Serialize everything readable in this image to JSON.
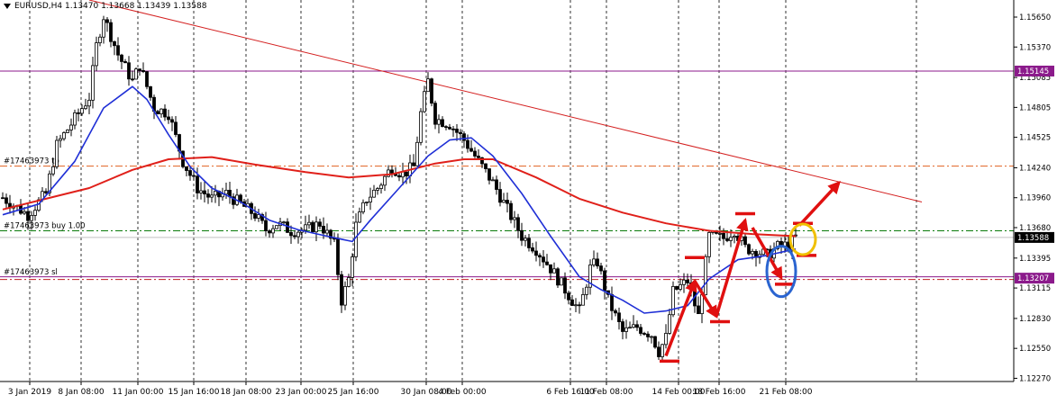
{
  "header": {
    "symbol": "EURUSD,H4",
    "ohlc": "1.13470 1.13668 1.13439 1.13588"
  },
  "colors": {
    "candle": "#000000",
    "ma_fast": "#1f2fd6",
    "ma_slow": "#e0201a",
    "trendline": "#d42020",
    "level_1_15145": "#8b1a8b",
    "tp_line": "#e06020",
    "buy_line": "#0a7a0a",
    "sl_line": "#c02020",
    "annotation_red": "#e01010",
    "annotation_blue": "#2a64d0",
    "annotation_yellow": "#f0c000",
    "price_tag_bg": "#8b1a8b",
    "current_tag_bg": "#000000"
  },
  "chart_data": {
    "type": "candlestick",
    "timeframe": "H4",
    "x_tick_labels": [
      "3 Jan 2019",
      "8 Jan 08:00",
      "11 Jan 00:00",
      "15 Jan 16:00",
      "18 Jan 08:00",
      "23 Jan 00:00",
      "25 Jan 16:00",
      "30 Jan 08:00",
      "4 Feb 00:00",
      "6 Feb 16:00",
      "11 Feb 08:00",
      "14 Feb 00:00",
      "18 Feb 16:00",
      "21 Feb 08:00"
    ],
    "y_tick_labels": [
      "1.15650",
      "1.15370",
      "1.15085",
      "1.14805",
      "1.14525",
      "1.14240",
      "1.13960",
      "1.13680",
      "1.13395",
      "1.13115",
      "1.12830",
      "1.12550",
      "1.12270"
    ],
    "ylim": [
      1.1224,
      1.1581
    ],
    "close_path": [
      [
        0,
        1.1396
      ],
      [
        7,
        1.138
      ],
      [
        12,
        1.14
      ],
      [
        15,
        1.1445
      ],
      [
        20,
        1.147
      ],
      [
        24,
        1.149
      ],
      [
        26,
        1.1538
      ],
      [
        28,
        1.1566
      ],
      [
        32,
        1.153
      ],
      [
        36,
        1.1505
      ],
      [
        38,
        1.152
      ],
      [
        42,
        1.148
      ],
      [
        46,
        1.1475
      ],
      [
        50,
        1.143
      ],
      [
        54,
        1.1405
      ],
      [
        58,
        1.1395
      ],
      [
        62,
        1.14
      ],
      [
        66,
        1.139
      ],
      [
        70,
        1.138
      ],
      [
        73,
        1.1366
      ],
      [
        76,
        1.1372
      ],
      [
        80,
        1.1365
      ],
      [
        84,
        1.1366
      ],
      [
        88,
        1.1372
      ],
      [
        92,
        1.1352
      ],
      [
        94,
        1.13
      ],
      [
        96,
        1.132
      ],
      [
        98,
        1.137
      ],
      [
        101,
        1.1395
      ],
      [
        104,
        1.1405
      ],
      [
        108,
        1.1425
      ],
      [
        111,
        1.1418
      ],
      [
        114,
        1.1425
      ],
      [
        116,
        1.1475
      ],
      [
        118,
        1.1505
      ],
      [
        120,
        1.147
      ],
      [
        124,
        1.1465
      ],
      [
        128,
        1.145
      ],
      [
        132,
        1.143
      ],
      [
        136,
        1.141
      ],
      [
        140,
        1.1385
      ],
      [
        144,
        1.136
      ],
      [
        148,
        1.1348
      ],
      [
        152,
        1.133
      ],
      [
        156,
        1.131
      ],
      [
        160,
        1.129
      ],
      [
        163,
        1.133
      ],
      [
        165,
        1.1336
      ],
      [
        168,
        1.13
      ],
      [
        172,
        1.127
      ],
      [
        176,
        1.1275
      ],
      [
        180,
        1.1268
      ],
      [
        182,
        1.1252
      ],
      [
        184,
        1.1265
      ],
      [
        186,
        1.1308
      ],
      [
        190,
        1.1318
      ],
      [
        193,
        1.1285
      ],
      [
        196,
        1.136
      ],
      [
        200,
        1.1358
      ],
      [
        203,
        1.1366
      ],
      [
        206,
        1.1349
      ],
      [
        209,
        1.1346
      ],
      [
        212,
        1.1342
      ],
      [
        215,
        1.135
      ],
      [
        218,
        1.1352
      ],
      [
        220,
        1.1359
      ]
    ],
    "series": [
      {
        "values": [
          [
            0,
            1.138
          ],
          [
            10,
            1.139
          ],
          [
            20,
            1.143
          ],
          [
            28,
            1.148
          ],
          [
            36,
            1.15
          ],
          [
            40,
            1.1488
          ],
          [
            46,
            1.1455
          ],
          [
            52,
            1.1425
          ],
          [
            58,
            1.1405
          ],
          [
            66,
            1.1392
          ],
          [
            74,
            1.1375
          ],
          [
            82,
            1.1366
          ],
          [
            90,
            1.136
          ],
          [
            97,
            1.1355
          ],
          [
            102,
            1.1375
          ],
          [
            110,
            1.1405
          ],
          [
            118,
            1.1435
          ],
          [
            124,
            1.145
          ],
          [
            130,
            1.1452
          ],
          [
            136,
            1.1435
          ],
          [
            144,
            1.14
          ],
          [
            152,
            1.136
          ],
          [
            160,
            1.1322
          ],
          [
            166,
            1.131
          ],
          [
            172,
            1.13
          ],
          [
            178,
            1.1288
          ],
          [
            184,
            1.129
          ],
          [
            190,
            1.1295
          ],
          [
            196,
            1.132
          ],
          [
            204,
            1.1338
          ],
          [
            212,
            1.1342
          ],
          [
            220,
            1.1348
          ]
        ]
      },
      {
        "values": [
          [
            0,
            1.1385
          ],
          [
            12,
            1.1395
          ],
          [
            24,
            1.1405
          ],
          [
            36,
            1.1422
          ],
          [
            46,
            1.1432
          ],
          [
            58,
            1.1434
          ],
          [
            70,
            1.1427
          ],
          [
            84,
            1.142
          ],
          [
            96,
            1.1415
          ],
          [
            108,
            1.1418
          ],
          [
            120,
            1.1428
          ],
          [
            128,
            1.1432
          ],
          [
            136,
            1.1432
          ],
          [
            148,
            1.1415
          ],
          [
            160,
            1.1395
          ],
          [
            172,
            1.1382
          ],
          [
            184,
            1.1372
          ],
          [
            196,
            1.1365
          ],
          [
            208,
            1.1362
          ],
          [
            220,
            1.136
          ]
        ]
      }
    ],
    "trendline": {
      "from": [
        24,
        1.1581
      ],
      "to": [
        255,
        1.1392
      ]
    },
    "horizontal_levels": [
      {
        "price": 1.15145,
        "label": "1.15145",
        "style": "solid",
        "tag": true
      },
      {
        "price": 1.14255,
        "label": "#17463973 tp",
        "style": "dash-dot"
      },
      {
        "price": 1.1365,
        "label": "#17463973 buy 1.00",
        "style": "dash-dot"
      },
      {
        "price": 1.13588,
        "label": "1.13588",
        "style": "current",
        "tag": true
      },
      {
        "price": 1.13207,
        "label": "#17463973 sl",
        "style": "solid-double",
        "tag_label": "1.13207"
      }
    ]
  },
  "annotations": {
    "red_arrows": [
      [
        [
          184,
          1.1248
        ],
        [
          192,
          1.1318
        ]
      ],
      [
        [
          192,
          1.1318
        ],
        [
          198,
          1.1285
        ]
      ],
      [
        [
          198,
          1.1285
        ],
        [
          206,
          1.1375
        ]
      ],
      [
        [
          208,
          1.1368
        ],
        [
          216,
          1.1321
        ]
      ],
      [
        [
          221,
          1.137
        ],
        [
          232,
          1.141
        ]
      ]
    ],
    "red_marks": [
      [
        185,
        1.1243
      ],
      [
        192,
        1.134
      ],
      [
        199,
        1.128
      ],
      [
        206,
        1.1381
      ],
      [
        217,
        1.1315
      ],
      [
        222,
        1.1372
      ],
      [
        223,
        1.1342
      ]
    ],
    "blue_ellipse": [
      216,
      1.1327
    ],
    "yellow_ellipse": [
      222,
      1.1357
    ]
  }
}
